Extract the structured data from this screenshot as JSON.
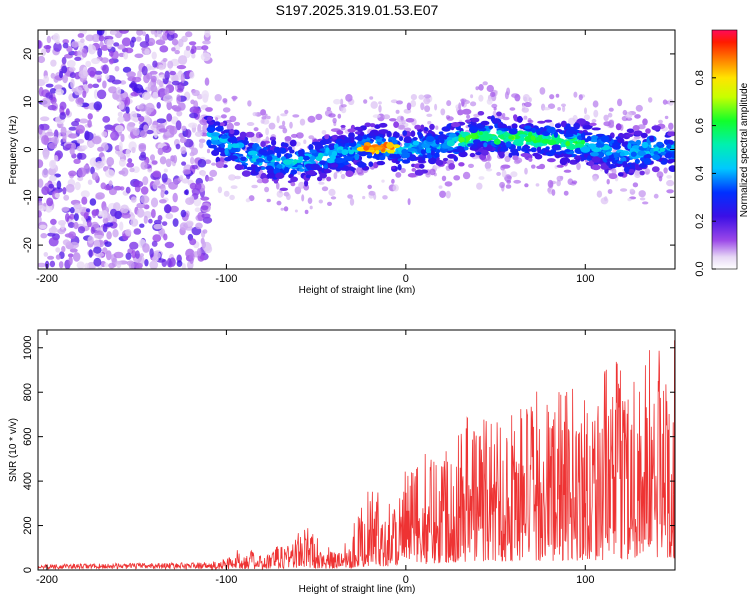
{
  "title": "S197.2025.319.01.53.E07",
  "chart_data": [
    {
      "type": "heatmap",
      "xlabel": "Height of straight line (km)",
      "ylabel": "Frequency (Hz)",
      "xlim": [
        -205,
        150
      ],
      "ylim": [
        -25,
        25
      ],
      "x_ticks": [
        -200,
        -100,
        0,
        100
      ],
      "y_ticks": [
        -20,
        -10,
        0,
        10,
        20
      ],
      "colorbar": {
        "label": "Normalized spectral amplitude",
        "range": [
          0,
          1
        ],
        "ticks": [
          0.0,
          0.2,
          0.4,
          0.6,
          0.8
        ]
      },
      "ridge_profile": [
        {
          "x": -110,
          "y": 3
        },
        {
          "x": -90,
          "y": -1
        },
        {
          "x": -70,
          "y": -3
        },
        {
          "x": -50,
          "y": -2
        },
        {
          "x": -30,
          "y": 0
        },
        {
          "x": -15,
          "y": 0.5
        },
        {
          "x": 0,
          "y": 0
        },
        {
          "x": 20,
          "y": 1
        },
        {
          "x": 40,
          "y": 3
        },
        {
          "x": 60,
          "y": 2.5
        },
        {
          "x": 80,
          "y": 2
        },
        {
          "x": 100,
          "y": 1
        },
        {
          "x": 120,
          "y": -1
        },
        {
          "x": 140,
          "y": 0
        }
      ]
    },
    {
      "type": "line",
      "xlabel": "Height of straight line (km)",
      "ylabel": "SNR (10 * v/v)",
      "xlim": [
        -205,
        150
      ],
      "ylim": [
        0,
        1080
      ],
      "x_ticks": [
        -200,
        -100,
        0,
        100
      ],
      "y_ticks": [
        0,
        200,
        400,
        600,
        800,
        1000
      ],
      "series_color": "#ee3333",
      "envelope": [
        {
          "x": -205,
          "y": 20
        },
        {
          "x": -110,
          "y": 30
        },
        {
          "x": -100,
          "y": 60
        },
        {
          "x": -90,
          "y": 110
        },
        {
          "x": -80,
          "y": 60
        },
        {
          "x": -65,
          "y": 150
        },
        {
          "x": -55,
          "y": 200
        },
        {
          "x": -40,
          "y": 80
        },
        {
          "x": -30,
          "y": 200
        },
        {
          "x": -20,
          "y": 380
        },
        {
          "x": -10,
          "y": 320
        },
        {
          "x": 0,
          "y": 450
        },
        {
          "x": 20,
          "y": 600
        },
        {
          "x": 35,
          "y": 760
        },
        {
          "x": 50,
          "y": 720
        },
        {
          "x": 70,
          "y": 800
        },
        {
          "x": 90,
          "y": 820
        },
        {
          "x": 110,
          "y": 900
        },
        {
          "x": 130,
          "y": 1000
        },
        {
          "x": 150,
          "y": 1050
        }
      ]
    }
  ]
}
